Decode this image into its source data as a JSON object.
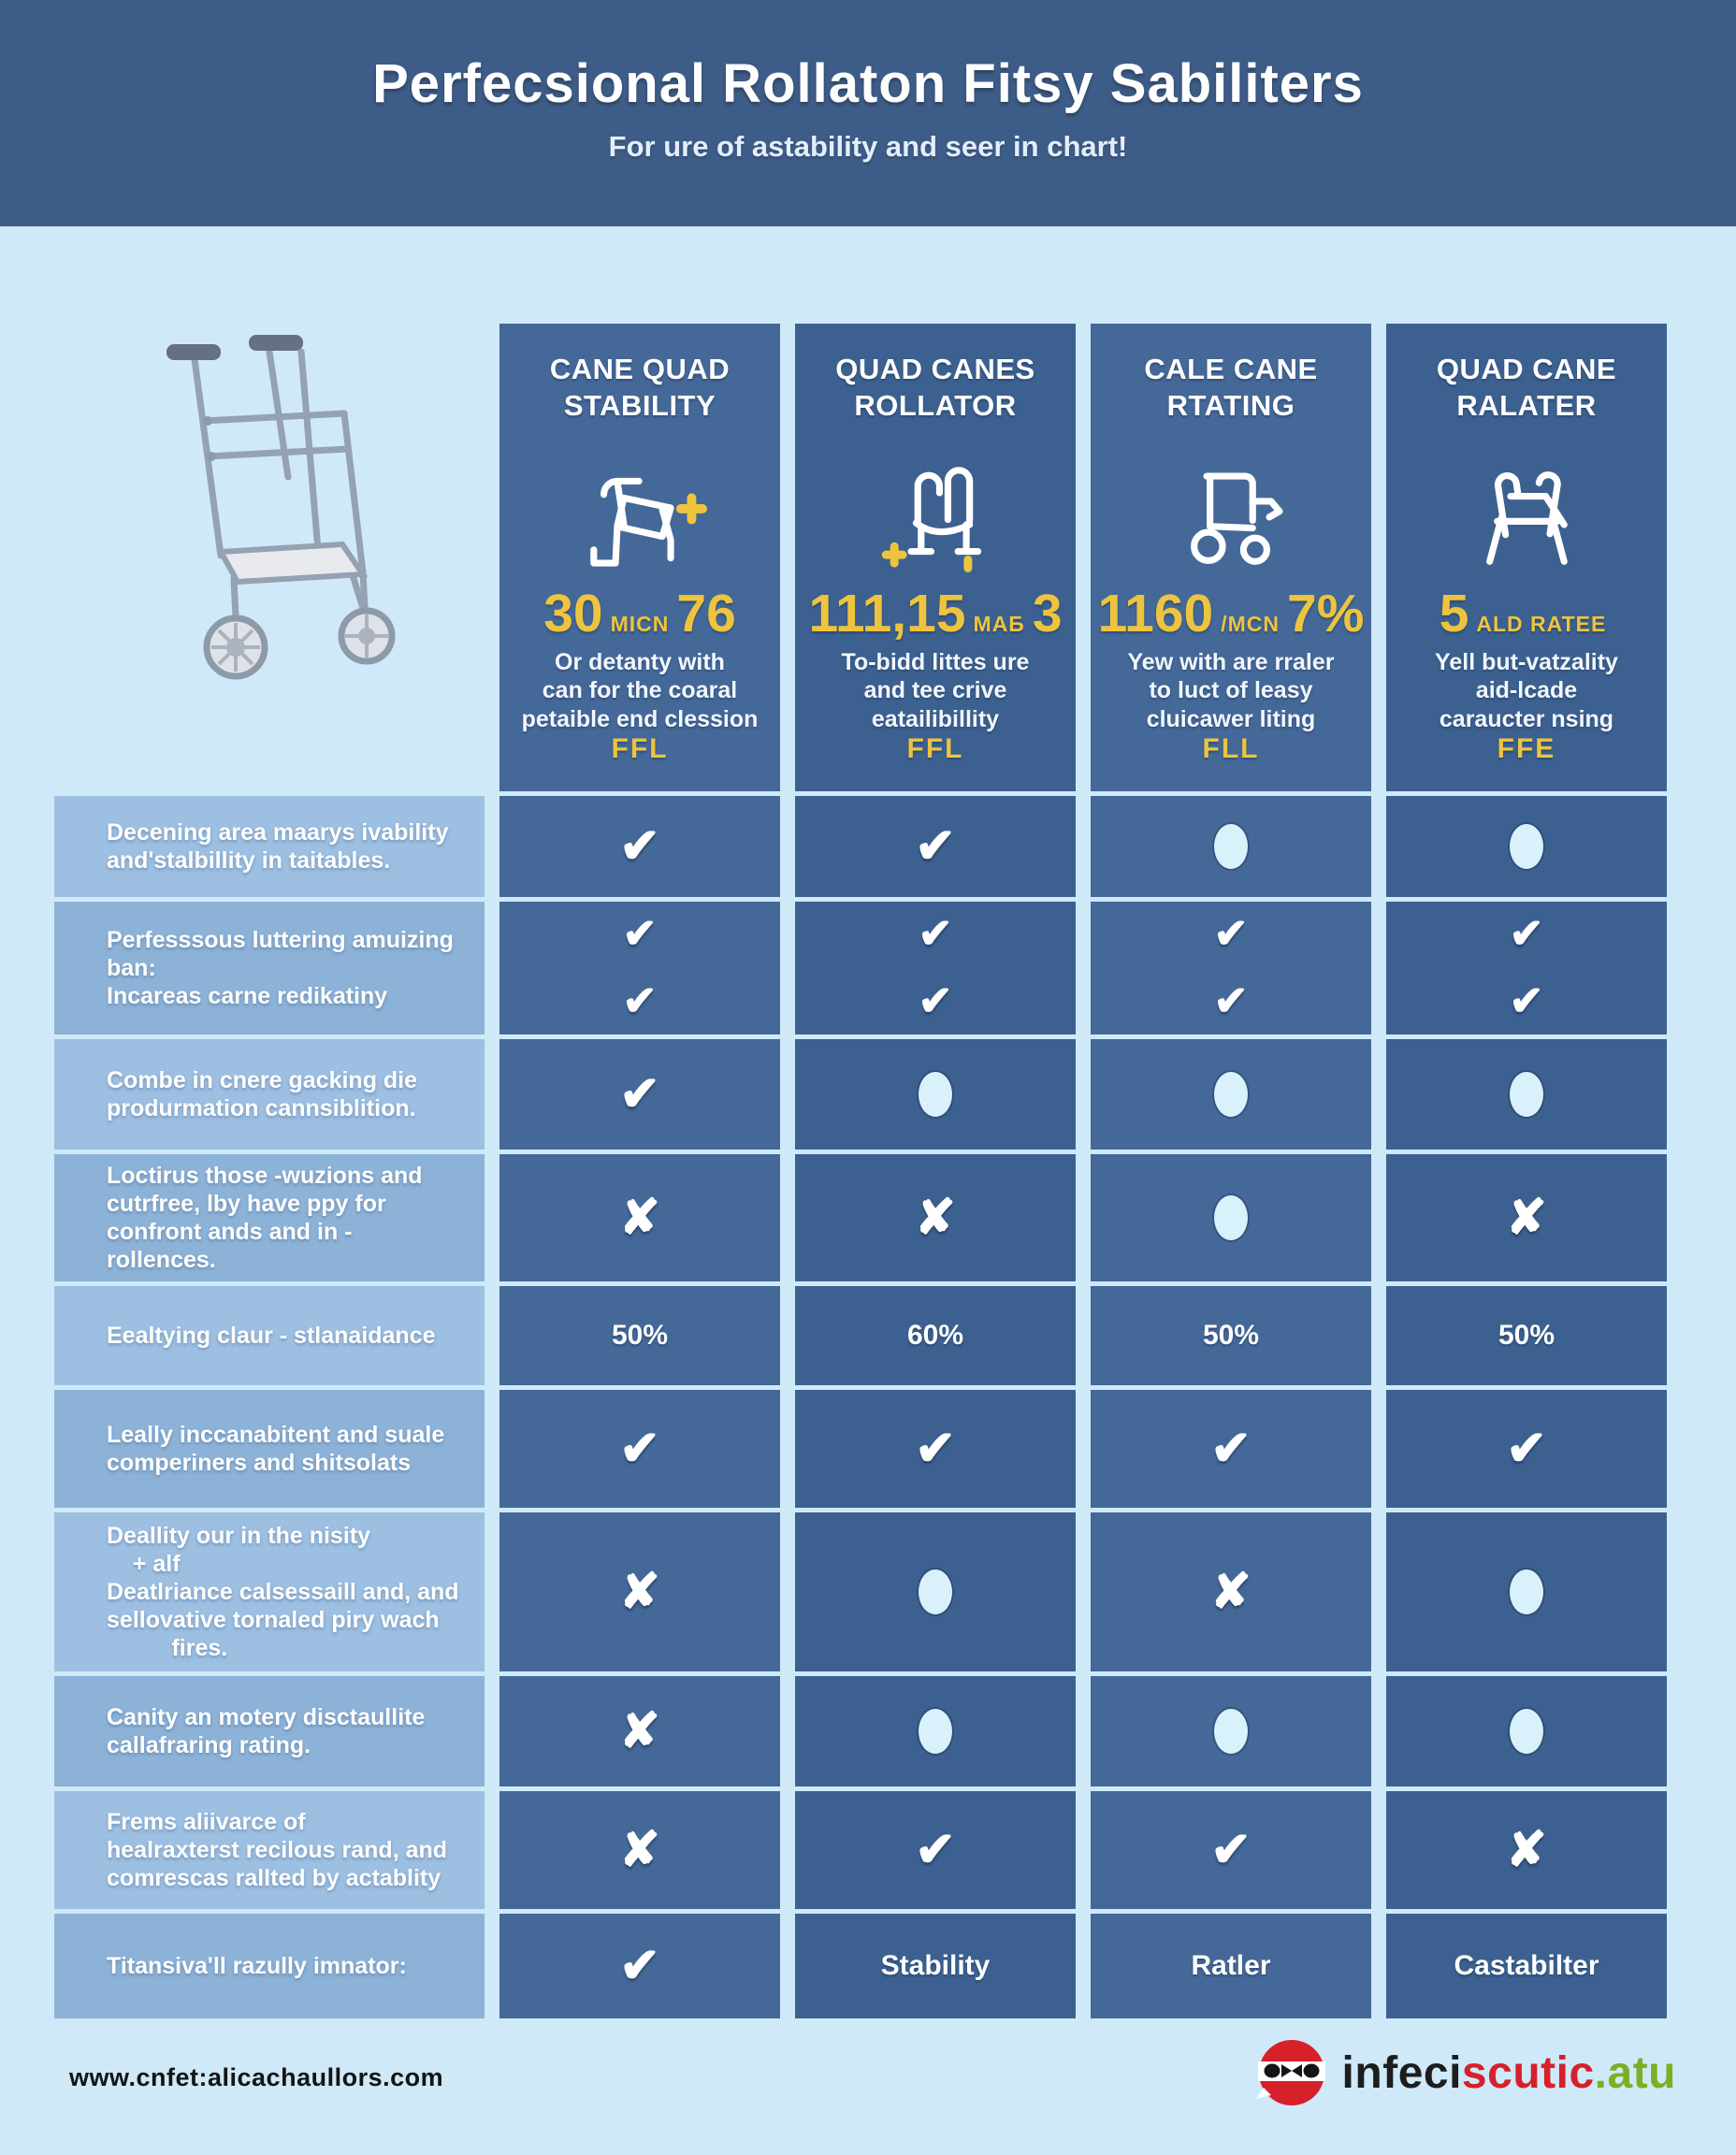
{
  "header": {
    "title": "Perfecsional Rollaton Fitsy Sabiliters",
    "subtitle": "For ure of astability and seer in chart!"
  },
  "chart_data": {
    "type": "table",
    "columns": [
      {
        "title": "CANE QUAD STABILITY",
        "icon": "walker-seat-plus-icon",
        "stat": {
          "big1": "30",
          "unit": "MICN",
          "big2": "76"
        },
        "description": "Or detanty with\ncan for the coaral\npetaible end clession",
        "tag": "FFL"
      },
      {
        "title": "QUAD CANES ROLLATOR",
        "icon": "rollator-plus-icon",
        "stat": {
          "big1": "111,15",
          "unit": "MAБ",
          "big2": "3"
        },
        "description": "To-bidd littes ure\nand tee crive\neatailibillity",
        "tag": "FFL"
      },
      {
        "title": "CALE CANE RTATING",
        "icon": "rollator-wheels-icon",
        "stat": {
          "big1": "1160",
          "unit": "/MCN",
          "big2": "7%"
        },
        "description": "Yew with are rraler\nto luct of leasy\ncluicawer liting",
        "tag": "FLL"
      },
      {
        "title": "QUAD CANE RALATER",
        "icon": "quad-walker-icon",
        "stat": {
          "big1": "5",
          "unit": "ALD RATEE",
          "big2": ""
        },
        "description": "Yell but-vatzality\naid-lcade\ncaraucter nsing",
        "tag": "FFE"
      }
    ],
    "rows": [
      {
        "label": "Decening area maarys ivability\nand'stalbillity in taitables.",
        "cells": [
          "check",
          "check",
          "dot",
          "dot"
        ]
      },
      {
        "label": "Perfesssous luttering amuizing\nban:\nIncareas carne redikatiny",
        "cells": [
          "check2",
          "check2",
          "check2",
          "check2"
        ]
      },
      {
        "label": "Combe in cnere gacking die\nprodurmation cannsiblition.",
        "cells": [
          "check",
          "dot",
          "dot",
          "dot"
        ]
      },
      {
        "label": "Loctirus those -wuzions and\ncutrfree, lby have ppy for\nconfront ands and in - rollences.",
        "cells": [
          "cross",
          "cross",
          "dot",
          "cross"
        ]
      },
      {
        "label": "Eealtying claur - stlanaidance",
        "cells": [
          {
            "text": "50%"
          },
          {
            "text": "60%"
          },
          {
            "text": "50%"
          },
          {
            "text": "50%"
          }
        ]
      },
      {
        "label": "Leally inccanabitent and suale\ncomperiners and shitsolats",
        "cells": [
          "check",
          "check",
          "check",
          "check"
        ]
      },
      {
        "label": "Deallity our in the nisity\n    + alf\nDeatlriance calsessaill and, and\nsellovative tornaled piry wach\n          fires.",
        "cells": [
          "cross",
          "dot",
          "cross",
          "dot"
        ]
      },
      {
        "label": "Canity an motery disctaullite\ncallafraring rating.",
        "cells": [
          "cross",
          "dot",
          "dot",
          "dot"
        ]
      },
      {
        "label": "Frems aliivarce of\nhealraxterst recilous rand, and\ncomrescas rallted by actablity",
        "cells": [
          "cross",
          "check",
          "check",
          "cross"
        ]
      },
      {
        "label": "Titansiva'll razully imnator:",
        "cells": [
          "check",
          {
            "text": "Stability"
          },
          {
            "text": "Ratler"
          },
          {
            "text": "Castabilter"
          }
        ]
      }
    ]
  },
  "footer": {
    "site_url": "www.cnfet:alicachaullors.com",
    "logo": {
      "part1": "infeci",
      "part2": "scutic",
      "part3": ".atu"
    }
  },
  "colors": {
    "band_blue": "#3d5c87",
    "card_blue_light": "#446898",
    "card_blue_dark": "#3c6190",
    "label_blue_light": "#9dbfe1",
    "label_blue_dark": "#8db2d7",
    "accent_yellow": "#eec43e",
    "dot_light_blue": "#d8f1fb",
    "page_bg": "#cfe9f8",
    "logo_red": "#d6202a",
    "logo_black": "#1d1d1d",
    "logo_green": "#7ab023"
  }
}
